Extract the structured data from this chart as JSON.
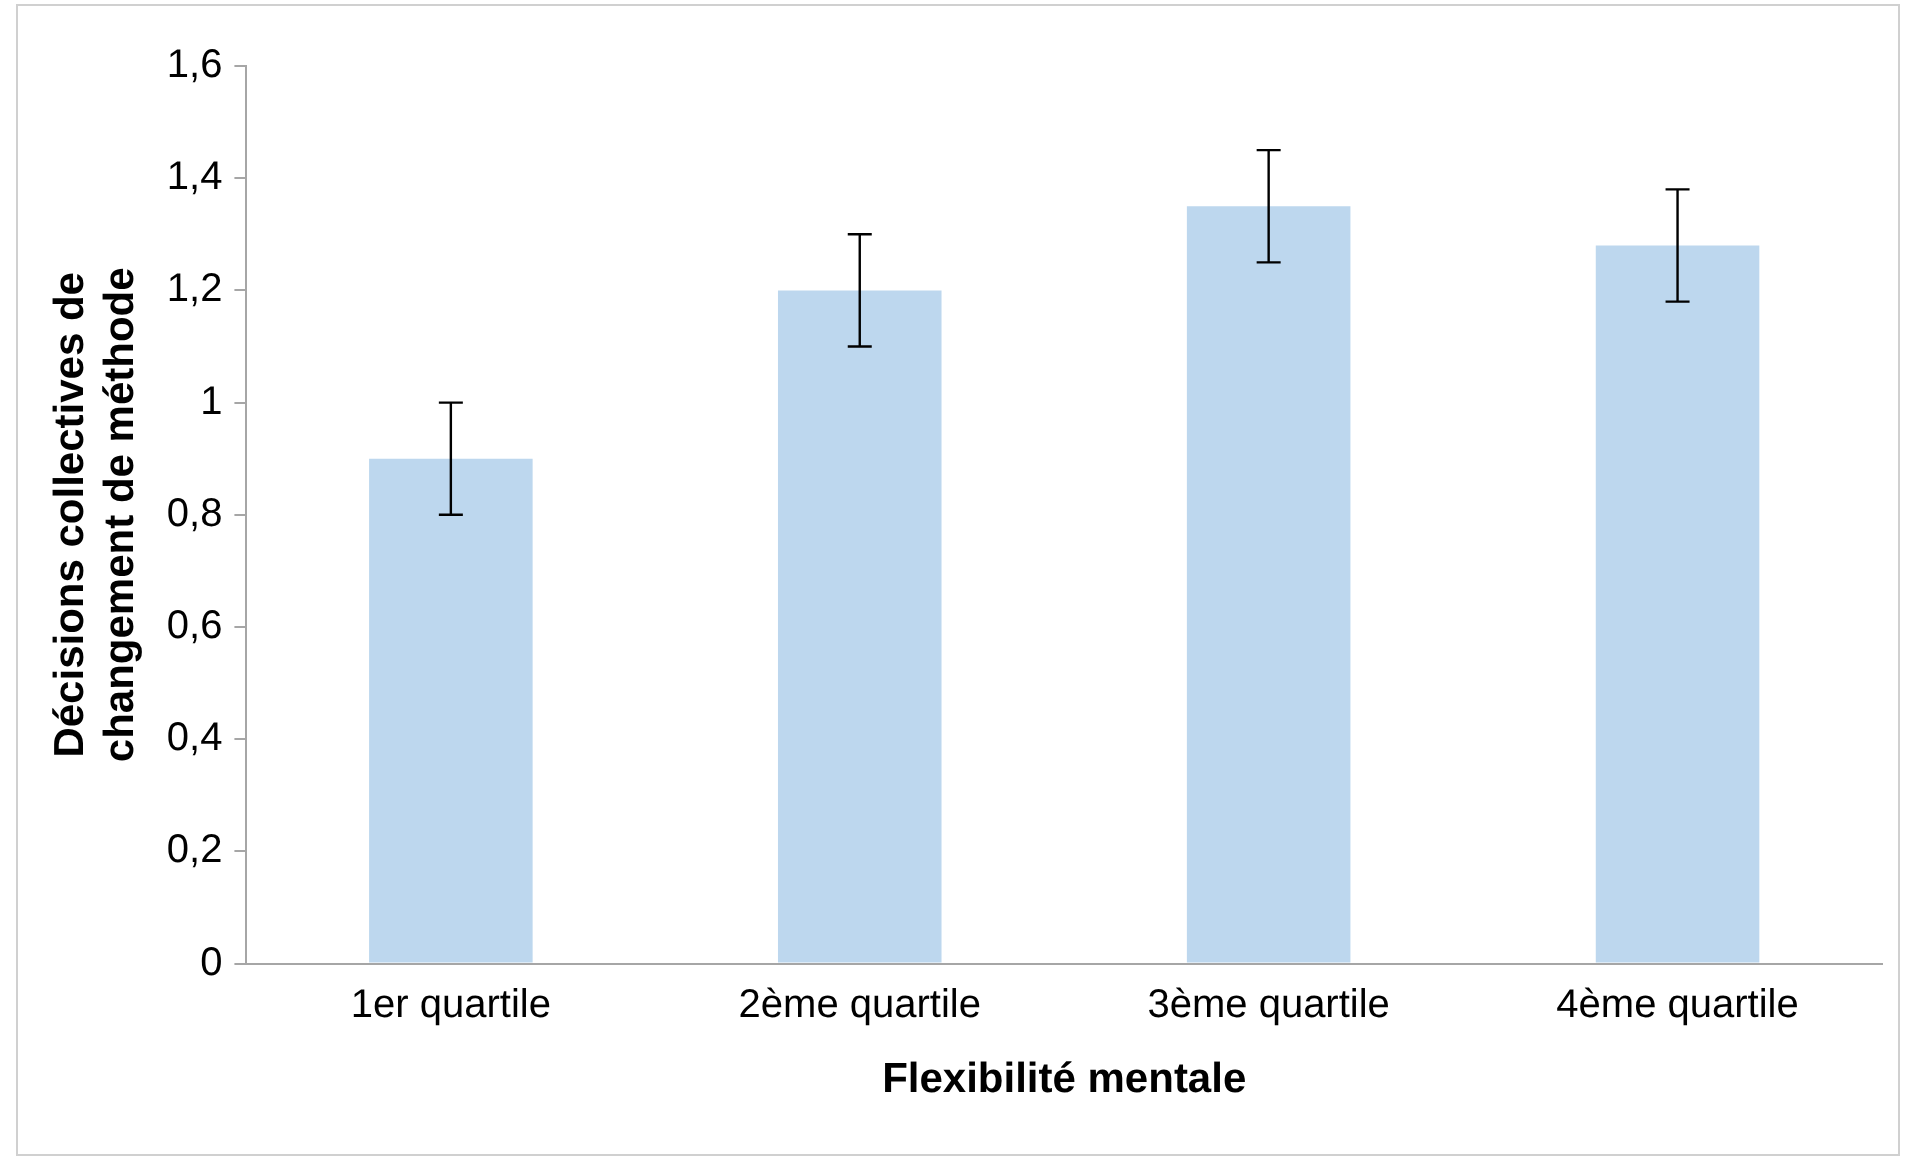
{
  "chart_data": {
    "type": "bar",
    "xlabel": "Flexibilité mentale",
    "ylabel": "Décisions collectives de\nchangement de méthode",
    "categories": [
      "1er quartile",
      "2ème quartile",
      "3ème quartile",
      "4ème quartile"
    ],
    "values": [
      0.9,
      1.2,
      1.35,
      1.28
    ],
    "errors": [
      0.1,
      0.1,
      0.1,
      0.1
    ],
    "color": "#bdd7ee",
    "ylim": [
      0,
      1.6
    ],
    "yticks": [
      {
        "value": 0,
        "label": "0"
      },
      {
        "value": 0.2,
        "label": "0,2"
      },
      {
        "value": 0.4,
        "label": "0,4"
      },
      {
        "value": 0.6,
        "label": "0,6"
      },
      {
        "value": 0.8,
        "label": "0,8"
      },
      {
        "value": 1,
        "label": "1"
      },
      {
        "value": 1.2,
        "label": "1,2"
      },
      {
        "value": 1.4,
        "label": "1,4"
      },
      {
        "value": 1.6,
        "label": "1,6"
      }
    ],
    "grid": false,
    "legend": false
  }
}
